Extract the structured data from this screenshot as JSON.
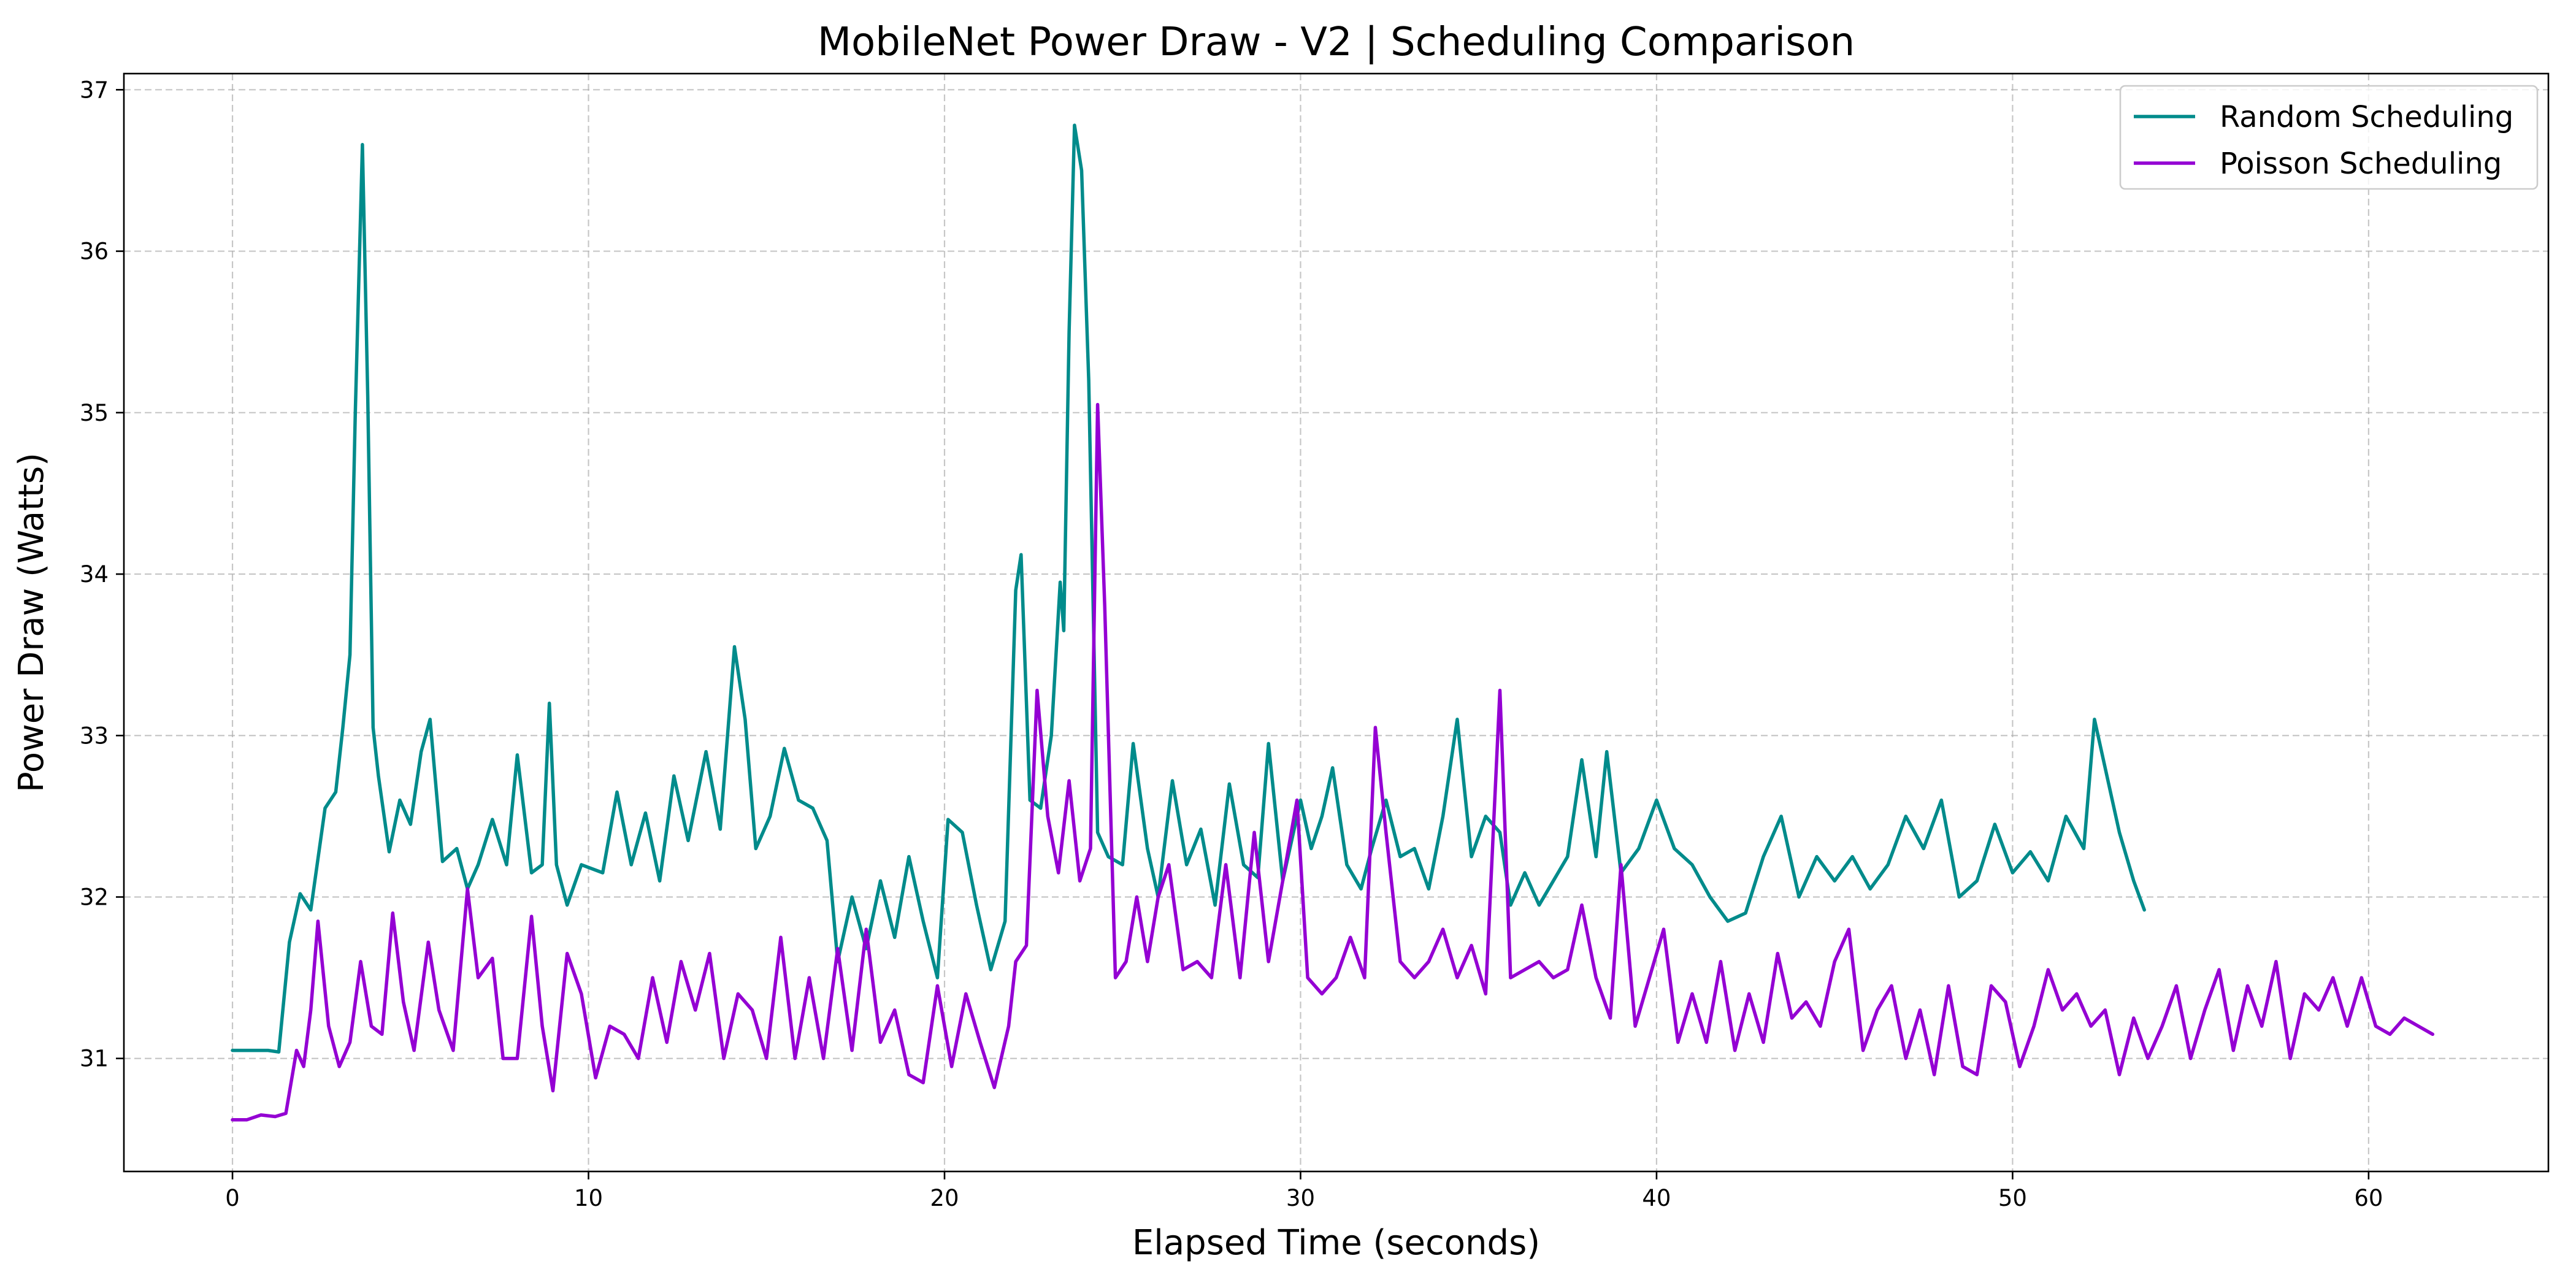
{
  "chart_data": {
    "type": "line",
    "title": "MobileNet Power Draw - V2 | Scheduling Comparison",
    "xlabel": "Elapsed Time (seconds)",
    "ylabel": "Power Draw (Watts)",
    "xlim": [
      -3.05,
      65.05
    ],
    "ylim": [
      30.3,
      37.1
    ],
    "xticks": [
      0,
      10,
      20,
      30,
      40,
      50,
      60
    ],
    "xtick_labels": [
      "0",
      "10",
      "20",
      "30",
      "40",
      "50",
      "60"
    ],
    "yticks": [
      31,
      32,
      33,
      34,
      35,
      36,
      37
    ],
    "ytick_labels": [
      "31",
      "32",
      "33",
      "34",
      "35",
      "36",
      "37"
    ],
    "grid": true,
    "legend_position": "top-right",
    "series": [
      {
        "name": "Random Scheduling",
        "color": "#008b8b",
        "points": [
          [
            0,
            31.05
          ],
          [
            0.5,
            31.05
          ],
          [
            1.0,
            31.05
          ],
          [
            1.3,
            31.04
          ],
          [
            1.6,
            31.72
          ],
          [
            1.9,
            32.02
          ],
          [
            2.2,
            31.92
          ],
          [
            2.6,
            32.55
          ],
          [
            2.9,
            32.65
          ],
          [
            3.1,
            33.05
          ],
          [
            3.3,
            33.5
          ],
          [
            3.45,
            35.0
          ],
          [
            3.65,
            36.66
          ],
          [
            3.8,
            35.1
          ],
          [
            3.95,
            33.05
          ],
          [
            4.1,
            32.75
          ],
          [
            4.4,
            32.28
          ],
          [
            4.7,
            32.6
          ],
          [
            5.0,
            32.45
          ],
          [
            5.3,
            32.9
          ],
          [
            5.55,
            33.1
          ],
          [
            5.9,
            32.22
          ],
          [
            6.3,
            32.3
          ],
          [
            6.6,
            32.05
          ],
          [
            6.9,
            32.2
          ],
          [
            7.3,
            32.48
          ],
          [
            7.7,
            32.2
          ],
          [
            8.0,
            32.88
          ],
          [
            8.4,
            32.15
          ],
          [
            8.7,
            32.2
          ],
          [
            8.9,
            33.2
          ],
          [
            9.1,
            32.2
          ],
          [
            9.4,
            31.95
          ],
          [
            9.8,
            32.2
          ],
          [
            10.4,
            32.15
          ],
          [
            10.8,
            32.65
          ],
          [
            11.2,
            32.2
          ],
          [
            11.6,
            32.52
          ],
          [
            12.0,
            32.1
          ],
          [
            12.4,
            32.75
          ],
          [
            12.8,
            32.35
          ],
          [
            13.3,
            32.9
          ],
          [
            13.7,
            32.42
          ],
          [
            14.1,
            33.55
          ],
          [
            14.4,
            33.1
          ],
          [
            14.7,
            32.3
          ],
          [
            15.1,
            32.5
          ],
          [
            15.5,
            32.92
          ],
          [
            15.9,
            32.6
          ],
          [
            16.3,
            32.55
          ],
          [
            16.7,
            32.35
          ],
          [
            17.0,
            31.6
          ],
          [
            17.4,
            32.0
          ],
          [
            17.8,
            31.68
          ],
          [
            18.2,
            32.1
          ],
          [
            18.6,
            31.75
          ],
          [
            19.0,
            32.25
          ],
          [
            19.4,
            31.85
          ],
          [
            19.8,
            31.5
          ],
          [
            20.1,
            32.48
          ],
          [
            20.5,
            32.4
          ],
          [
            20.9,
            31.95
          ],
          [
            21.3,
            31.55
          ],
          [
            21.7,
            31.85
          ],
          [
            22.0,
            33.9
          ],
          [
            22.15,
            34.12
          ],
          [
            22.4,
            32.6
          ],
          [
            22.7,
            32.55
          ],
          [
            23.0,
            33.0
          ],
          [
            23.25,
            33.95
          ],
          [
            23.35,
            33.65
          ],
          [
            23.5,
            35.5
          ],
          [
            23.65,
            36.78
          ],
          [
            23.85,
            36.5
          ],
          [
            24.05,
            35.2
          ],
          [
            24.3,
            32.4
          ],
          [
            24.6,
            32.25
          ],
          [
            25.0,
            32.2
          ],
          [
            25.3,
            32.95
          ],
          [
            25.7,
            32.3
          ],
          [
            26.0,
            32.0
          ],
          [
            26.4,
            32.72
          ],
          [
            26.8,
            32.2
          ],
          [
            27.2,
            32.42
          ],
          [
            27.6,
            31.95
          ],
          [
            28.0,
            32.7
          ],
          [
            28.4,
            32.2
          ],
          [
            28.8,
            32.12
          ],
          [
            29.1,
            32.95
          ],
          [
            29.5,
            32.1
          ],
          [
            30.0,
            32.6
          ],
          [
            30.3,
            32.3
          ],
          [
            30.6,
            32.5
          ],
          [
            30.9,
            32.8
          ],
          [
            31.3,
            32.2
          ],
          [
            31.7,
            32.05
          ],
          [
            32.0,
            32.3
          ],
          [
            32.4,
            32.6
          ],
          [
            32.8,
            32.25
          ],
          [
            33.2,
            32.3
          ],
          [
            33.6,
            32.05
          ],
          [
            34.0,
            32.5
          ],
          [
            34.4,
            33.1
          ],
          [
            34.8,
            32.25
          ],
          [
            35.2,
            32.5
          ],
          [
            35.6,
            32.4
          ],
          [
            35.9,
            31.95
          ],
          [
            36.3,
            32.15
          ],
          [
            36.7,
            31.95
          ],
          [
            37.1,
            32.1
          ],
          [
            37.5,
            32.25
          ],
          [
            37.9,
            32.85
          ],
          [
            38.3,
            32.25
          ],
          [
            38.6,
            32.9
          ],
          [
            39.0,
            32.15
          ],
          [
            39.5,
            32.3
          ],
          [
            40.0,
            32.6
          ],
          [
            40.5,
            32.3
          ],
          [
            41.0,
            32.2
          ],
          [
            41.5,
            32.0
          ],
          [
            42.0,
            31.85
          ],
          [
            42.5,
            31.9
          ],
          [
            43.0,
            32.25
          ],
          [
            43.5,
            32.5
          ],
          [
            44.0,
            32.0
          ],
          [
            44.5,
            32.25
          ],
          [
            45.0,
            32.1
          ],
          [
            45.5,
            32.25
          ],
          [
            46.0,
            32.05
          ],
          [
            46.5,
            32.2
          ],
          [
            47.0,
            32.5
          ],
          [
            47.5,
            32.3
          ],
          [
            48.0,
            32.6
          ],
          [
            48.5,
            32.0
          ],
          [
            49.0,
            32.1
          ],
          [
            49.5,
            32.45
          ],
          [
            50.0,
            32.15
          ],
          [
            50.5,
            32.28
          ],
          [
            51.0,
            32.1
          ],
          [
            51.5,
            32.5
          ],
          [
            52.0,
            32.3
          ],
          [
            52.3,
            33.1
          ],
          [
            52.6,
            32.8
          ],
          [
            53.0,
            32.4
          ],
          [
            53.4,
            32.1
          ],
          [
            53.7,
            31.92
          ]
        ]
      },
      {
        "name": "Poisson Scheduling",
        "color": "#9400d3",
        "points": [
          [
            0,
            30.62
          ],
          [
            0.4,
            30.62
          ],
          [
            0.8,
            30.65
          ],
          [
            1.2,
            30.64
          ],
          [
            1.5,
            30.66
          ],
          [
            1.8,
            31.05
          ],
          [
            2.0,
            30.95
          ],
          [
            2.2,
            31.3
          ],
          [
            2.4,
            31.85
          ],
          [
            2.7,
            31.2
          ],
          [
            3.0,
            30.95
          ],
          [
            3.3,
            31.1
          ],
          [
            3.6,
            31.6
          ],
          [
            3.9,
            31.2
          ],
          [
            4.2,
            31.15
          ],
          [
            4.5,
            31.9
          ],
          [
            4.8,
            31.35
          ],
          [
            5.1,
            31.05
          ],
          [
            5.5,
            31.72
          ],
          [
            5.8,
            31.3
          ],
          [
            6.2,
            31.05
          ],
          [
            6.6,
            32.05
          ],
          [
            6.9,
            31.5
          ],
          [
            7.3,
            31.62
          ],
          [
            7.6,
            31.0
          ],
          [
            8.0,
            31.0
          ],
          [
            8.4,
            31.88
          ],
          [
            8.7,
            31.2
          ],
          [
            9.0,
            30.8
          ],
          [
            9.4,
            31.65
          ],
          [
            9.8,
            31.4
          ],
          [
            10.2,
            30.88
          ],
          [
            10.6,
            31.2
          ],
          [
            11.0,
            31.15
          ],
          [
            11.4,
            31.0
          ],
          [
            11.8,
            31.5
          ],
          [
            12.2,
            31.1
          ],
          [
            12.6,
            31.6
          ],
          [
            13.0,
            31.3
          ],
          [
            13.4,
            31.65
          ],
          [
            13.8,
            31.0
          ],
          [
            14.2,
            31.4
          ],
          [
            14.6,
            31.3
          ],
          [
            15.0,
            31.0
          ],
          [
            15.4,
            31.75
          ],
          [
            15.8,
            31.0
          ],
          [
            16.2,
            31.5
          ],
          [
            16.6,
            31.0
          ],
          [
            17.0,
            31.68
          ],
          [
            17.4,
            31.05
          ],
          [
            17.8,
            31.8
          ],
          [
            18.2,
            31.1
          ],
          [
            18.6,
            31.3
          ],
          [
            19.0,
            30.9
          ],
          [
            19.4,
            30.85
          ],
          [
            19.8,
            31.45
          ],
          [
            20.2,
            30.95
          ],
          [
            20.6,
            31.4
          ],
          [
            21.0,
            31.1
          ],
          [
            21.4,
            30.82
          ],
          [
            21.8,
            31.2
          ],
          [
            22.0,
            31.6
          ],
          [
            22.3,
            31.7
          ],
          [
            22.6,
            33.28
          ],
          [
            22.9,
            32.5
          ],
          [
            23.2,
            32.15
          ],
          [
            23.5,
            32.72
          ],
          [
            23.8,
            32.1
          ],
          [
            24.1,
            32.3
          ],
          [
            24.3,
            35.05
          ],
          [
            24.5,
            33.8
          ],
          [
            24.8,
            31.5
          ],
          [
            25.1,
            31.6
          ],
          [
            25.4,
            32.0
          ],
          [
            25.7,
            31.6
          ],
          [
            26.0,
            32.0
          ],
          [
            26.3,
            32.2
          ],
          [
            26.7,
            31.55
          ],
          [
            27.1,
            31.6
          ],
          [
            27.5,
            31.5
          ],
          [
            27.9,
            32.2
          ],
          [
            28.3,
            31.5
          ],
          [
            28.7,
            32.4
          ],
          [
            29.1,
            31.6
          ],
          [
            29.5,
            32.1
          ],
          [
            29.9,
            32.6
          ],
          [
            30.2,
            31.5
          ],
          [
            30.6,
            31.4
          ],
          [
            31.0,
            31.5
          ],
          [
            31.4,
            31.75
          ],
          [
            31.8,
            31.5
          ],
          [
            32.1,
            33.05
          ],
          [
            32.4,
            32.4
          ],
          [
            32.8,
            31.6
          ],
          [
            33.2,
            31.5
          ],
          [
            33.6,
            31.6
          ],
          [
            34.0,
            31.8
          ],
          [
            34.4,
            31.5
          ],
          [
            34.8,
            31.7
          ],
          [
            35.2,
            31.4
          ],
          [
            35.6,
            33.28
          ],
          [
            35.9,
            31.5
          ],
          [
            36.3,
            31.55
          ],
          [
            36.7,
            31.6
          ],
          [
            37.1,
            31.5
          ],
          [
            37.5,
            31.55
          ],
          [
            37.9,
            31.95
          ],
          [
            38.3,
            31.5
          ],
          [
            38.7,
            31.25
          ],
          [
            39.0,
            32.2
          ],
          [
            39.4,
            31.2
          ],
          [
            39.8,
            31.5
          ],
          [
            40.2,
            31.8
          ],
          [
            40.6,
            31.1
          ],
          [
            41.0,
            31.4
          ],
          [
            41.4,
            31.1
          ],
          [
            41.8,
            31.6
          ],
          [
            42.2,
            31.05
          ],
          [
            42.6,
            31.4
          ],
          [
            43.0,
            31.1
          ],
          [
            43.4,
            31.65
          ],
          [
            43.8,
            31.25
          ],
          [
            44.2,
            31.35
          ],
          [
            44.6,
            31.2
          ],
          [
            45.0,
            31.6
          ],
          [
            45.4,
            31.8
          ],
          [
            45.8,
            31.05
          ],
          [
            46.2,
            31.3
          ],
          [
            46.6,
            31.45
          ],
          [
            47.0,
            31.0
          ],
          [
            47.4,
            31.3
          ],
          [
            47.8,
            30.9
          ],
          [
            48.2,
            31.45
          ],
          [
            48.6,
            30.95
          ],
          [
            49.0,
            30.9
          ],
          [
            49.4,
            31.45
          ],
          [
            49.8,
            31.35
          ],
          [
            50.2,
            30.95
          ],
          [
            50.6,
            31.2
          ],
          [
            51.0,
            31.55
          ],
          [
            51.4,
            31.3
          ],
          [
            51.8,
            31.4
          ],
          [
            52.2,
            31.2
          ],
          [
            52.6,
            31.3
          ],
          [
            53.0,
            30.9
          ],
          [
            53.4,
            31.25
          ],
          [
            53.8,
            31.0
          ],
          [
            54.2,
            31.2
          ],
          [
            54.6,
            31.45
          ],
          [
            55.0,
            31.0
          ],
          [
            55.4,
            31.3
          ],
          [
            55.8,
            31.55
          ],
          [
            56.2,
            31.05
          ],
          [
            56.6,
            31.45
          ],
          [
            57.0,
            31.2
          ],
          [
            57.4,
            31.6
          ],
          [
            57.8,
            31.0
          ],
          [
            58.2,
            31.4
          ],
          [
            58.6,
            31.3
          ],
          [
            59.0,
            31.5
          ],
          [
            59.4,
            31.2
          ],
          [
            59.8,
            31.5
          ],
          [
            60.2,
            31.2
          ],
          [
            60.6,
            31.15
          ],
          [
            61.0,
            31.25
          ],
          [
            61.4,
            31.2
          ],
          [
            61.8,
            31.15
          ]
        ]
      }
    ]
  }
}
